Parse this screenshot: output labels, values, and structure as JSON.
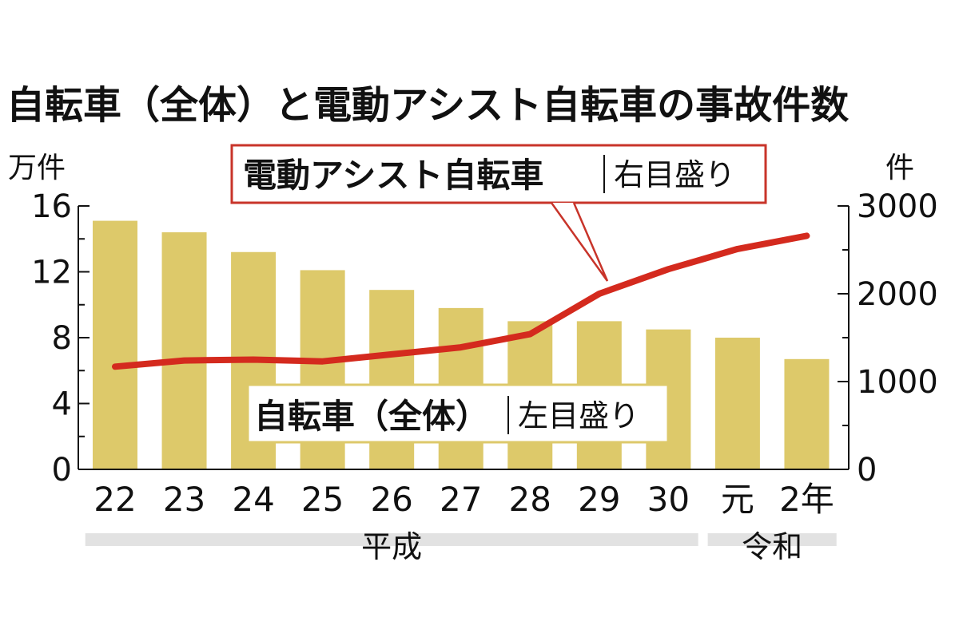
{
  "chart_data": {
    "type": "bar",
    "title": "自転車（全体）と電動アシスト自転車の事故件数",
    "categories": [
      "22",
      "23",
      "24",
      "25",
      "26",
      "27",
      "28",
      "29",
      "30",
      "元",
      "2年"
    ],
    "eras": [
      {
        "label": "平成",
        "from": "22",
        "to": "30"
      },
      {
        "label": "令和",
        "from": "元",
        "to": "2年"
      }
    ],
    "left_axis": {
      "unit": "万件",
      "ticks": [
        "0",
        "4",
        "8",
        "12",
        "16"
      ],
      "range": [
        0,
        16
      ]
    },
    "right_axis": {
      "unit": "件",
      "ticks": [
        "0",
        "1000",
        "2000",
        "3000"
      ],
      "range": [
        0,
        3000
      ]
    },
    "series": [
      {
        "name": "自転車（全体）",
        "scale_label": "左目盛り",
        "kind": "bar",
        "axis": "left",
        "color": "#ddc96a",
        "values": [
          15.1,
          14.4,
          13.2,
          12.1,
          10.9,
          9.8,
          9.0,
          9.0,
          8.5,
          8.0,
          6.7
        ]
      },
      {
        "name": "電動アシスト自転車",
        "scale_label": "右目盛り",
        "kind": "line",
        "axis": "right",
        "color": "#d42a1e",
        "legend_border": "#c8342a",
        "values": [
          1170,
          1240,
          1250,
          1230,
          1310,
          1390,
          1540,
          2000,
          2280,
          2510,
          2660
        ]
      }
    ],
    "era_band_color": "#e2e2e2",
    "grid": false
  }
}
